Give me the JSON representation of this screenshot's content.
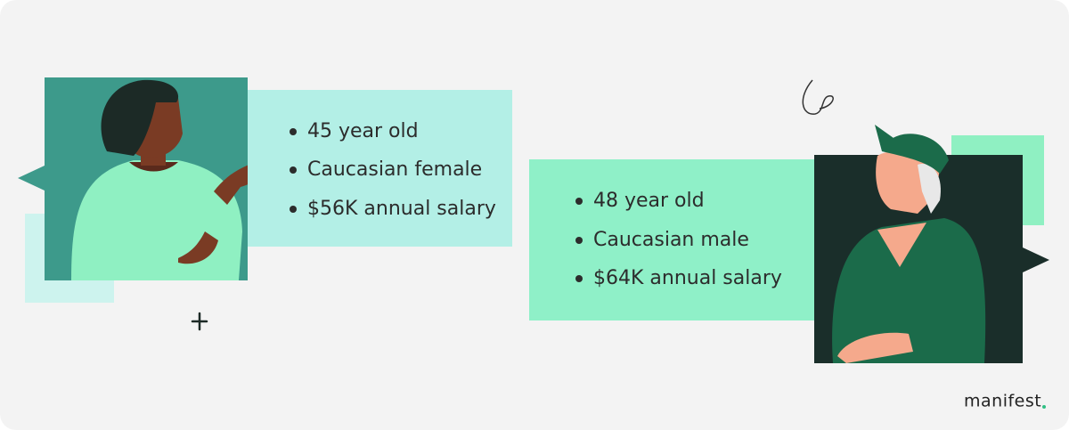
{
  "personas": [
    {
      "facts": [
        "45 year old",
        "Caucasian female",
        "$56K annual salary"
      ]
    },
    {
      "facts": [
        "48 year old",
        "Caucasian male",
        "$64K annual salary"
      ]
    }
  ],
  "brand": "manifest"
}
